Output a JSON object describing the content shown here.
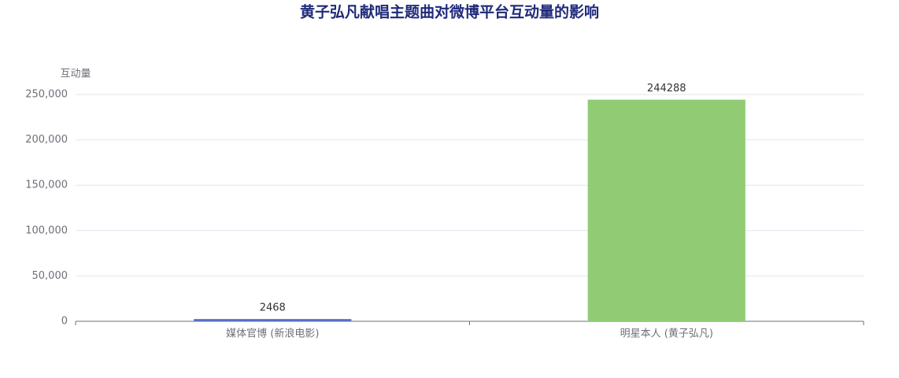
{
  "chart_data": {
    "type": "bar",
    "title": "黄子弘凡献唱主题曲对微博平台互动量的影响",
    "y_label": "互动量",
    "categories": [
      "媒体官博 (新浪电影)",
      "明星本人 (黄子弘凡)"
    ],
    "values": [
      2468,
      244288
    ],
    "colors": [
      "#5470c6",
      "#91cc75"
    ],
    "ylim": [
      0,
      250000
    ],
    "yticks": [
      0,
      {
        "value": 50000,
        "label": "50,000"
      },
      {
        "value": 100000,
        "label": "100,000"
      },
      {
        "value": 150000,
        "label": "150,000"
      },
      {
        "value": 200000,
        "label": "200,000"
      },
      {
        "value": 250000,
        "label": "250,000"
      }
    ],
    "grid": true
  }
}
